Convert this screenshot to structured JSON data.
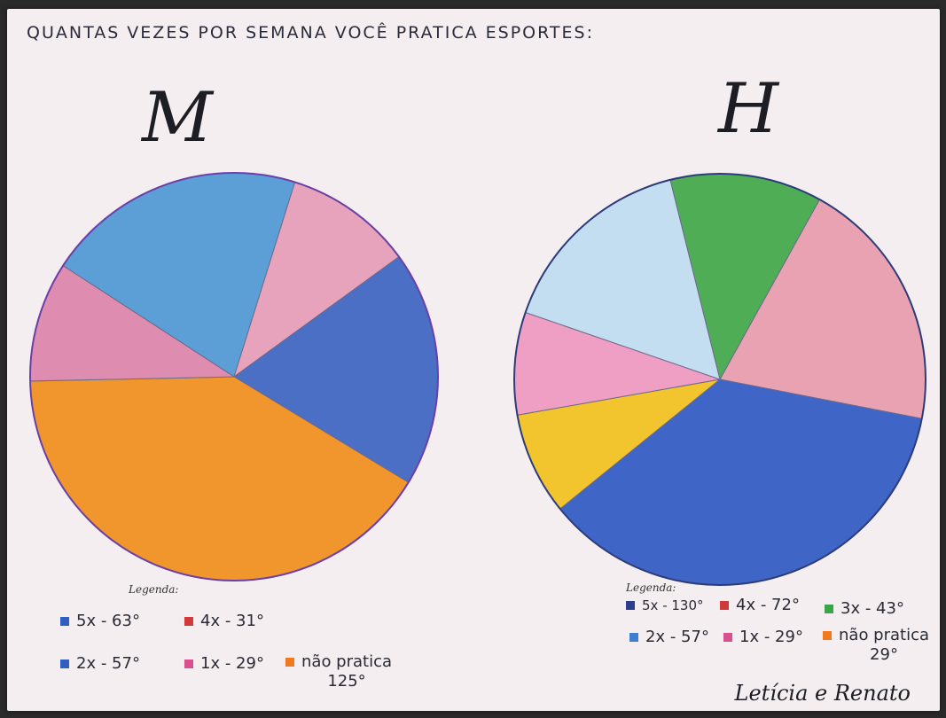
{
  "title": "QUANTAS VEZES POR SEMANA VOCÊ PRATICA ESPORTES:",
  "legend_heading": "Legenda:",
  "signature": "Letícia e Renato",
  "chart_data": [
    {
      "type": "pie",
      "title": "M",
      "unit": "degrees",
      "slices": [
        {
          "label": "5x - 63°",
          "value": 63,
          "color": "#5b9fd6"
        },
        {
          "label": "4x - 31°",
          "value": 31,
          "color": "#e8a3bc"
        },
        {
          "label": "2x - 57°",
          "value": 57,
          "color": "#4a6fc4"
        },
        {
          "label": "não pratica 125°",
          "value": 125,
          "color": "#f0962c"
        },
        {
          "label": "1x - 29°",
          "value": 29,
          "color": "#de8db0"
        }
      ],
      "legend": [
        {
          "text": "5x - 63°",
          "color": "#2f5fc0"
        },
        {
          "text": "4x - 31°",
          "color": "#d23a3a"
        },
        {
          "text": "2x - 57°",
          "color": "#2f5fc0"
        },
        {
          "text": "1x - 29°",
          "color": "#d9508f"
        },
        {
          "text": "não pratica",
          "text2": "125°",
          "color": "#f07a1e"
        }
      ]
    },
    {
      "type": "pie",
      "title": "H",
      "unit": "degrees",
      "slices": [
        {
          "label": "3x - 43°",
          "value": 43,
          "color": "#4fae55"
        },
        {
          "label": "4x - 72°",
          "value": 72,
          "color": "#e8a2b2"
        },
        {
          "label": "5x - 130°",
          "value": 130,
          "color": "#3f65c6"
        },
        {
          "label": "não pratica 29°",
          "value": 29,
          "color": "#f2c42e"
        },
        {
          "label": "1x - 29°",
          "value": 29,
          "color": "#ef9fc3"
        },
        {
          "label": "2x - 57°",
          "value": 57,
          "color": "#c3def0"
        }
      ],
      "legend": [
        {
          "text": "5x - 130°",
          "color": "#2c3f8e"
        },
        {
          "text": "4x - 72°",
          "color": "#d23a3a"
        },
        {
          "text": "3x - 43°",
          "color": "#3aa64a"
        },
        {
          "text": "2x - 57°",
          "color": "#3f7fd0"
        },
        {
          "text": "1x - 29°",
          "color": "#d9508f"
        },
        {
          "text": "não pratica",
          "text2": "29°",
          "color": "#f07a1e"
        }
      ]
    }
  ]
}
